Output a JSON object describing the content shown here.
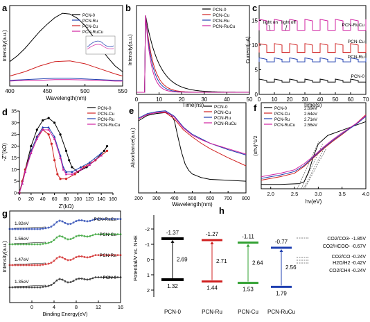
{
  "colors": {
    "pcn0": "#000000",
    "pcncu": "#d02020",
    "pcnru": "#2040b0",
    "pcnrucu": "#d020a0",
    "green": "#30a030"
  },
  "chart_data": [
    {
      "id": "a",
      "type": "line",
      "panel_label": "a",
      "xlabel": "Wavelength(nm)",
      "ylabel": "Intensity(a.u.)",
      "xlim": [
        400,
        550
      ],
      "xticks": [
        "400",
        "450",
        "500",
        "550"
      ],
      "series": [
        {
          "name": "PCN-0",
          "x": [
            400,
            410,
            420,
            430,
            440,
            450,
            460,
            470,
            480,
            490,
            500,
            510,
            520,
            530,
            540,
            550
          ],
          "y": [
            0.3,
            0.38,
            0.48,
            0.6,
            0.72,
            0.82,
            0.91,
            0.97,
            0.96,
            0.9,
            0.8,
            0.66,
            0.5,
            0.36,
            0.24,
            0.16
          ]
        },
        {
          "name": "PCN-Ru",
          "x": [
            400,
            420,
            440,
            460,
            480,
            500,
            520,
            540,
            550
          ],
          "y": [
            0.04,
            0.05,
            0.06,
            0.07,
            0.07,
            0.06,
            0.05,
            0.04,
            0.04
          ]
        },
        {
          "name": "PCN-Cu",
          "x": [
            400,
            420,
            440,
            460,
            480,
            500,
            520,
            540,
            550
          ],
          "y": [
            0.1,
            0.16,
            0.24,
            0.3,
            0.31,
            0.27,
            0.2,
            0.13,
            0.1
          ]
        },
        {
          "name": "PCN-RuCu",
          "x": [
            400,
            420,
            440,
            460,
            480,
            500,
            520,
            540,
            550
          ],
          "y": [
            0.03,
            0.04,
            0.04,
            0.05,
            0.05,
            0.045,
            0.04,
            0.03,
            0.03
          ]
        }
      ]
    },
    {
      "id": "b",
      "type": "line",
      "panel_label": "b",
      "xlabel": "Time(ns)",
      "ylabel": "Intensity(a.u.)",
      "xlim": [
        0,
        50
      ],
      "xticks": [
        "0",
        "10",
        "20",
        "30",
        "40",
        "50"
      ],
      "series": [
        {
          "name": "PCN-0",
          "decay": 6.0
        },
        {
          "name": "PCN-Cu",
          "decay": 3.5
        },
        {
          "name": "PCN-Ru",
          "decay": 3.0
        },
        {
          "name": "PCN-RuCu",
          "decay": 2.5
        }
      ]
    },
    {
      "id": "c",
      "type": "line",
      "panel_label": "c",
      "xlabel": "Time(s)",
      "ylabel": "Current(μA)",
      "xlim": [
        0,
        70
      ],
      "ylim": [
        0,
        18
      ],
      "xticks": [
        "0",
        "10",
        "20",
        "30",
        "40",
        "50",
        "60",
        "70"
      ],
      "yticks": [
        "0",
        "5",
        "10",
        "15"
      ],
      "annotations": [
        "light on",
        "light off"
      ],
      "series": [
        {
          "name": "PCN-RuCu",
          "off": 13.0,
          "on": 15.2
        },
        {
          "name": "PCN-Cu",
          "off": 8.5,
          "on": 10.3
        },
        {
          "name": "PCN-Ru",
          "off": 6.6,
          "on": 7.4
        },
        {
          "name": "PCN-0",
          "off": 2.5,
          "on": 3.1
        }
      ]
    },
    {
      "id": "d",
      "type": "scatter",
      "panel_label": "d",
      "xlabel": "Z'(kΩ)",
      "ylabel": "-Z''(kΩ)",
      "xlim": [
        0,
        160
      ],
      "ylim": [
        0,
        35
      ],
      "xticks": [
        "0",
        "20",
        "40",
        "60",
        "80",
        "100",
        "120",
        "140",
        "160"
      ],
      "yticks": [
        "0",
        "5",
        "10",
        "15",
        "20",
        "25",
        "30",
        "35"
      ],
      "series": [
        {
          "name": "PCN-0",
          "x": [
            0,
            5,
            10,
            20,
            30,
            40,
            50,
            60,
            70,
            80,
            85,
            90,
            100,
            115,
            130,
            145,
            150
          ],
          "y": [
            0,
            5,
            10,
            20,
            27,
            31,
            32,
            30,
            25,
            18,
            14,
            11,
            9,
            11,
            14,
            18,
            20
          ]
        },
        {
          "name": "PCN-Cu",
          "x": [
            0,
            5,
            10,
            20,
            30,
            40,
            50,
            55,
            60,
            65,
            70,
            80,
            95,
            110,
            130,
            150
          ],
          "y": [
            0,
            5,
            10,
            18,
            24,
            27,
            25,
            21,
            14,
            8,
            6,
            6,
            8,
            11,
            14,
            18
          ]
        },
        {
          "name": "PCN-Ru",
          "x": [
            0,
            5,
            10,
            20,
            30,
            40,
            50,
            60,
            70,
            75,
            80,
            90,
            105,
            120,
            140
          ],
          "y": [
            0,
            4,
            9,
            18,
            24,
            28,
            28,
            24,
            16,
            11,
            9,
            9,
            11,
            13,
            17
          ]
        },
        {
          "name": "PCN-RuCu",
          "x": [
            0,
            5,
            10,
            20,
            30,
            40,
            50,
            60,
            70,
            75,
            80,
            90,
            105,
            120,
            140
          ],
          "y": [
            0,
            4,
            9,
            17,
            23,
            27,
            27,
            23,
            15,
            10,
            8,
            8,
            10,
            12,
            16
          ]
        }
      ]
    },
    {
      "id": "e",
      "type": "line",
      "panel_label": "e",
      "xlabel": "Wavelength(nm)",
      "ylabel": "Absorbance(a.u.)",
      "xlim": [
        200,
        800
      ],
      "xticks": [
        "200",
        "300",
        "400",
        "500",
        "600",
        "700",
        "800"
      ],
      "series": [
        {
          "name": "PCN-0",
          "x": [
            200,
            250,
            300,
            350,
            380,
            400,
            420,
            440,
            460,
            480,
            500,
            550,
            600,
            700,
            800
          ],
          "y": [
            0.8,
            0.86,
            0.88,
            0.89,
            0.87,
            0.8,
            0.62,
            0.45,
            0.32,
            0.25,
            0.21,
            0.17,
            0.15,
            0.14,
            0.13
          ]
        },
        {
          "name": "PCN-Cu",
          "x": [
            200,
            250,
            300,
            350,
            400,
            450,
            500,
            550,
            600,
            700,
            800
          ],
          "y": [
            0.82,
            0.87,
            0.89,
            0.89,
            0.82,
            0.7,
            0.62,
            0.55,
            0.49,
            0.39,
            0.3
          ]
        },
        {
          "name": "PCN-Ru",
          "x": [
            200,
            250,
            300,
            350,
            400,
            450,
            500,
            550,
            600,
            700,
            800
          ],
          "y": [
            0.83,
            0.88,
            0.9,
            0.91,
            0.85,
            0.73,
            0.65,
            0.6,
            0.55,
            0.48,
            0.42
          ]
        },
        {
          "name": "PCN-RuCu",
          "x": [
            200,
            250,
            300,
            350,
            400,
            450,
            500,
            550,
            600,
            700,
            800
          ],
          "y": [
            0.82,
            0.87,
            0.89,
            0.9,
            0.84,
            0.72,
            0.64,
            0.59,
            0.55,
            0.49,
            0.43
          ]
        }
      ]
    },
    {
      "id": "f",
      "type": "line",
      "panel_label": "f",
      "xlabel": "hν(eV)",
      "ylabel": "(αhν)^1/2",
      "xlim": [
        1.8,
        4.0
      ],
      "xticks": [
        "2.0",
        "2.5",
        "3.0",
        "3.5",
        "4.0"
      ],
      "series": [
        {
          "name": "PCN-0",
          "band_gap": "2.69eV",
          "x": [
            1.8,
            2.2,
            2.6,
            2.7,
            2.8,
            2.9,
            3.0,
            3.2,
            3.5,
            3.8,
            4.0
          ],
          "y": [
            0.05,
            0.05,
            0.06,
            0.08,
            0.2,
            0.38,
            0.52,
            0.62,
            0.68,
            0.74,
            0.78
          ]
        },
        {
          "name": "PCN-Cu",
          "band_gap": "2.64eV",
          "x": [
            1.8,
            2.2,
            2.5,
            2.7,
            2.9,
            3.1,
            3.3,
            3.5,
            3.8,
            4.0
          ],
          "y": [
            0.1,
            0.14,
            0.18,
            0.26,
            0.36,
            0.46,
            0.55,
            0.63,
            0.76,
            0.86
          ]
        },
        {
          "name": "PCN-Ru",
          "band_gap": "2.71eV",
          "x": [
            1.8,
            2.2,
            2.5,
            2.7,
            2.9,
            3.1,
            3.3,
            3.5,
            3.8,
            4.0
          ],
          "y": [
            0.12,
            0.16,
            0.2,
            0.27,
            0.37,
            0.47,
            0.56,
            0.64,
            0.75,
            0.84
          ]
        },
        {
          "name": "PCN-RuCu",
          "band_gap": "2.56eV",
          "x": [
            1.8,
            2.2,
            2.5,
            2.7,
            2.9,
            3.1,
            3.3,
            3.5,
            3.8,
            4.0
          ],
          "y": [
            0.14,
            0.18,
            0.22,
            0.29,
            0.38,
            0.48,
            0.57,
            0.65,
            0.76,
            0.85
          ]
        }
      ]
    },
    {
      "id": "g",
      "type": "scatter",
      "panel_label": "g",
      "xlabel": "Binding Energy(eV)",
      "ylabel": "Intensity(a.u.)",
      "xlim": [
        -4,
        16
      ],
      "xticks": [
        "0",
        "4",
        "8",
        "12",
        "16"
      ],
      "series": [
        {
          "name": "PCN-RuCu",
          "edge": "1.82eV",
          "offset": 3
        },
        {
          "name": "PCN-Cu",
          "edge": "1.56eV",
          "offset": 2
        },
        {
          "name": "PCN-Ru",
          "edge": "1.47eV",
          "offset": 1
        },
        {
          "name": "PCN-0",
          "edge": "1.35eV",
          "offset": 0
        }
      ]
    },
    {
      "id": "h",
      "type": "diagram",
      "panel_label": "h",
      "ylabel": "Potential/V vs. NHE",
      "ylim": [
        2.2,
        -2.0
      ],
      "yticks": [
        "-2",
        "-1",
        "0",
        "1",
        "2"
      ],
      "bands": [
        {
          "name": "PCN-0",
          "cb": -1.37,
          "vb": 1.32,
          "cb_label": "-1.37",
          "vb_label": "1.32",
          "gap_label": "2.69"
        },
        {
          "name": "PCN-Ru",
          "cb": -1.27,
          "vb": 1.44,
          "cb_label": "-1.27",
          "vb_label": "1.44",
          "gap_label": "2.71"
        },
        {
          "name": "PCN-Cu",
          "cb": -1.11,
          "vb": 1.53,
          "cb_label": "-1.11",
          "vb_label": "1.53",
          "gap_label": "2.64"
        },
        {
          "name": "PCN-RuCu",
          "cb": -0.77,
          "vb": 1.79,
          "cb_label": "-0.77",
          "vb_label": "1.79",
          "gap_label": "2.56"
        }
      ],
      "redox_legend": [
        "CO2/CO3-  -1.85V",
        "CO2/HCOO- -0.67V",
        "CO2/CO  -0.24V",
        "H2O/H2  -0.42V",
        "CO2/CH4 -0.24V"
      ]
    }
  ]
}
